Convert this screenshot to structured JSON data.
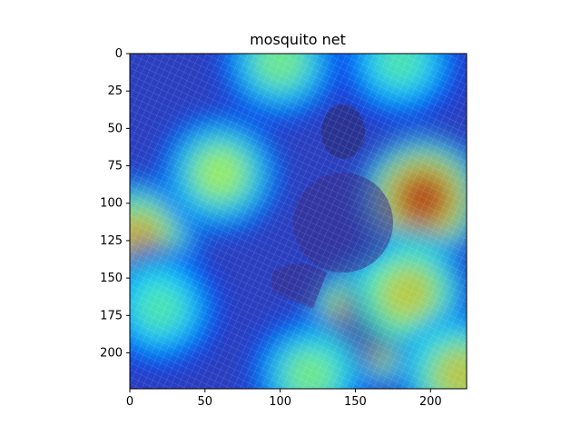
{
  "chart_data": {
    "type": "heatmap",
    "title": "mosquito net",
    "xlabel": "",
    "ylabel": "",
    "xlim": [
      0,
      224
    ],
    "ylim": [
      224,
      0
    ],
    "x_ticks": [
      0,
      50,
      100,
      150,
      200
    ],
    "y_ticks": [
      0,
      25,
      50,
      75,
      100,
      125,
      150,
      175,
      200
    ],
    "colormap": "jet",
    "grid": false,
    "description_of_content": "",
    "hotspots": [
      {
        "x": 160,
        "y": 180,
        "value": 1.0
      },
      {
        "x": 195,
        "y": 97,
        "value": 0.95
      },
      {
        "x": 5,
        "y": 125,
        "value": 0.75
      },
      {
        "x": 185,
        "y": 160,
        "value": 0.7
      },
      {
        "x": 100,
        "y": 5,
        "value": 0.55
      },
      {
        "x": 60,
        "y": 80,
        "value": 0.6
      },
      {
        "x": 20,
        "y": 170,
        "value": 0.5
      },
      {
        "x": 120,
        "y": 215,
        "value": 0.55
      },
      {
        "x": 220,
        "y": 215,
        "value": 0.7
      },
      {
        "x": 180,
        "y": 5,
        "value": 0.5
      }
    ]
  }
}
